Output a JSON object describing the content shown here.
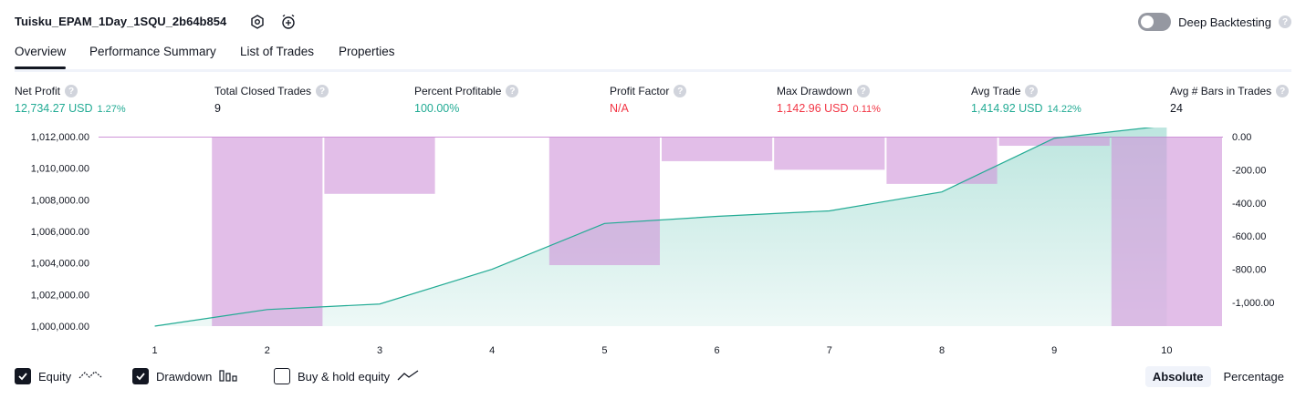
{
  "header": {
    "strategy_name": "Tuisku_EPAM_1Day_1SQU_2b64b854",
    "icons": [
      "settings-icon",
      "add-alert-icon"
    ],
    "deep_backtesting_label": "Deep Backtesting",
    "deep_backtesting_enabled": false,
    "help_glyph": "?"
  },
  "tabs": [
    {
      "label": "Overview",
      "active": true
    },
    {
      "label": "Performance Summary",
      "active": false
    },
    {
      "label": "List of Trades",
      "active": false
    },
    {
      "label": "Properties",
      "active": false
    }
  ],
  "metrics": [
    {
      "label": "Net Profit",
      "value": "12,734.27 USD",
      "pct": "1.27%",
      "color": "green"
    },
    {
      "label": "Total Closed Trades",
      "value": "9",
      "pct": "",
      "color": "plain"
    },
    {
      "label": "Percent Profitable",
      "value": "100.00%",
      "pct": "",
      "color": "green"
    },
    {
      "label": "Profit Factor",
      "value": "N/A",
      "pct": "",
      "color": "red"
    },
    {
      "label": "Max Drawdown",
      "value": "1,142.96 USD",
      "pct": "0.11%",
      "color": "red"
    },
    {
      "label": "Avg Trade",
      "value": "1,414.92 USD",
      "pct": "14.22%",
      "color": "green"
    },
    {
      "label": "Avg # Bars in Trades",
      "value": "24",
      "pct": "",
      "color": "plain"
    }
  ],
  "chart_data": {
    "type": "line",
    "x": [
      1,
      2,
      3,
      4,
      5,
      6,
      7,
      8,
      9,
      10
    ],
    "series": [
      {
        "name": "Equity",
        "type": "area",
        "axis": "left",
        "color": "#22ab94",
        "values": [
          1000000,
          1001050,
          1001400,
          1003600,
          1006500,
          1006950,
          1007300,
          1008500,
          1011900,
          1012700
        ]
      },
      {
        "name": "Drawdown",
        "type": "bar",
        "axis": "right",
        "color": "#ce93d8",
        "values": [
          0,
          -1142.96,
          -345,
          0,
          -775,
          -148,
          -200,
          -285,
          -55,
          -1142.96
        ]
      }
    ],
    "left_axis": {
      "ylim": [
        1000000,
        1012000
      ],
      "ticks": [
        "1,012,000.00",
        "1,010,000.00",
        "1,008,000.00",
        "1,006,000.00",
        "1,004,000.00",
        "1,002,000.00",
        "1,000,000.00"
      ]
    },
    "right_axis": {
      "ylim": [
        -1142.96,
        0
      ],
      "ticks": [
        "0.00",
        "-200.00",
        "-400.00",
        "-600.00",
        "-800.00",
        "-1,000.00"
      ]
    },
    "x_ticks": [
      "1",
      "2",
      "3",
      "4",
      "5",
      "6",
      "7",
      "8",
      "9",
      "10"
    ]
  },
  "legend": {
    "items": [
      {
        "label": "Equity",
        "checked": true,
        "icon": "equity-line-icon"
      },
      {
        "label": "Drawdown",
        "checked": true,
        "icon": "drawdown-bars-icon"
      },
      {
        "label": "Buy & hold equity",
        "checked": false,
        "icon": "buy-hold-line-icon"
      }
    ],
    "modes": [
      {
        "label": "Absolute",
        "active": true
      },
      {
        "label": "Percentage",
        "active": false
      }
    ]
  },
  "colors": {
    "equity_line": "#22ab94",
    "equity_fill": "#22ab94",
    "drawdown_fill": "#ce93d8",
    "profit": "#22ab94",
    "loss": "#f23645"
  }
}
